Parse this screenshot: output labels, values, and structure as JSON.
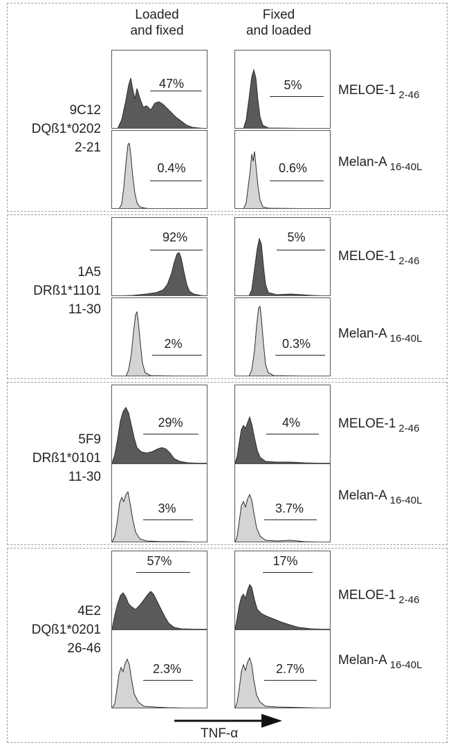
{
  "headers": {
    "loaded_fixed": [
      "Loaded",
      "and fixed"
    ],
    "fixed_loaded": [
      "Fixed",
      "and loaded"
    ]
  },
  "colors": {
    "melo_fill": "#5a5a5a",
    "melan_fill": "#d4d4d4",
    "stroke": "#2a2a2a",
    "border": "#9a9a9a"
  },
  "groups": [
    {
      "clone_lines": [
        "9C12",
        "DQß1*0202",
        "2-21"
      ],
      "rows": [
        {
          "peptide": "MELOE-1",
          "sub": "2-46",
          "shade": "dark",
          "lf": "47%",
          "fl": "5%"
        },
        {
          "peptide": "Melan-A",
          "sub": "16-40L",
          "shade": "light",
          "lf": "0.4%",
          "fl": "0.6%"
        }
      ]
    },
    {
      "clone_lines": [
        "1A5",
        "DRß1*1101",
        "11-30"
      ],
      "rows": [
        {
          "peptide": "MELOE-1",
          "sub": "2-46",
          "shade": "dark",
          "lf": "92%",
          "fl": "5%"
        },
        {
          "peptide": "Melan-A",
          "sub": "16-40L",
          "shade": "light",
          "lf": "2%",
          "fl": "0.3%"
        }
      ]
    },
    {
      "clone_lines": [
        "5F9",
        "DRß1*0101",
        "11-30"
      ],
      "rows": [
        {
          "peptide": "MELOE-1",
          "sub": "2-46",
          "shade": "dark",
          "lf": "29%",
          "fl": "4%"
        },
        {
          "peptide": "Melan-A",
          "sub": "16-40L",
          "shade": "light",
          "lf": "3%",
          "fl": "3.7%"
        }
      ]
    },
    {
      "clone_lines": [
        "4E2",
        "DQß1*0201",
        "26-46"
      ],
      "rows": [
        {
          "peptide": "MELOE-1",
          "sub": "2-46",
          "shade": "dark",
          "lf": "57%",
          "fl": "17%"
        },
        {
          "peptide": "Melan-A",
          "sub": "16-40L",
          "shade": "light",
          "lf": "2.3%",
          "fl": "2.7%"
        }
      ]
    }
  ],
  "axis": {
    "label": "TNF-α"
  }
}
